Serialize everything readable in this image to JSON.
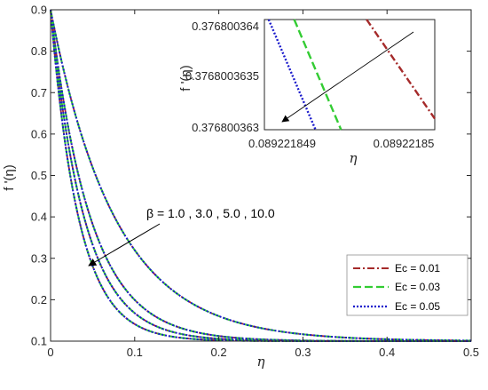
{
  "chart_data": [
    {
      "id": "main",
      "type": "line",
      "xlabel": "η",
      "ylabel": "f '(η)",
      "xlim": [
        0,
        0.5
      ],
      "ylim": [
        0.1,
        0.9
      ],
      "x_ticks": [
        0,
        0.1,
        0.2,
        0.3,
        0.4,
        0.5
      ],
      "x_tick_labels": [
        "0",
        "0.1",
        "0.2",
        "0.3",
        "0.4",
        "0.5"
      ],
      "y_ticks": [
        0.1,
        0.2,
        0.3,
        0.4,
        0.5,
        0.6,
        0.7,
        0.8,
        0.9
      ],
      "y_tick_labels": [
        "0.1",
        "0.2",
        "0.3",
        "0.4",
        "0.5",
        "0.6",
        "0.7",
        "0.8",
        "0.9"
      ],
      "grid": false,
      "legend_position": "bottom-right",
      "legend": [
        {
          "label": "Ec = 0.01",
          "color": "#a52a2a",
          "style": "dashdot"
        },
        {
          "label": "Ec = 0.03",
          "color": "#33cc33",
          "style": "dashed"
        },
        {
          "label": "Ec = 0.05",
          "color": "#1a1acc",
          "style": "dotted"
        }
      ],
      "beta_values": [
        1.0,
        3.0,
        5.0,
        10.0
      ],
      "ec_values": [
        0.01,
        0.03,
        0.05
      ],
      "series_shape": "f'(η) = 0.1 + 0.8·exp(-η/decay)",
      "decay_by_beta": [
        0.0774,
        0.048,
        0.0405,
        0.0337
      ],
      "annotation": {
        "text": "β = 1.0 , 3.0 , 5.0 , 10.0",
        "arrow": "toward decreasing f'"
      }
    },
    {
      "id": "inset",
      "type": "line",
      "xlabel": "η",
      "ylabel": "f '(η)",
      "xlim": [
        0.0892218485,
        0.0892218505
      ],
      "ylim": [
        0.376800363,
        0.376800364
      ],
      "x_tick_labels": [
        "0.089221849",
        "0.08922185"
      ],
      "y_tick_labels": [
        "0.376800364",
        "0.3768003635",
        "0.376800363"
      ],
      "series": [
        {
          "name": "Ec = 0.05",
          "color": "#1a1acc",
          "style": "dotted",
          "points": [
            [
              0.08922184855,
              0.376800364
            ],
            [
              0.0892218491,
              0.376800363
            ]
          ]
        },
        {
          "name": "Ec = 0.03",
          "color": "#33cc33",
          "style": "dashed",
          "points": [
            [
              0.08922184885,
              0.376800364
            ],
            [
              0.0892218494,
              0.376800363
            ]
          ]
        },
        {
          "name": "Ec = 0.01",
          "color": "#a52a2a",
          "style": "dashdot",
          "points": [
            [
              0.0892218497,
              0.376800364
            ],
            [
              0.0892218505,
              0.3768003631
            ]
          ]
        }
      ]
    }
  ]
}
